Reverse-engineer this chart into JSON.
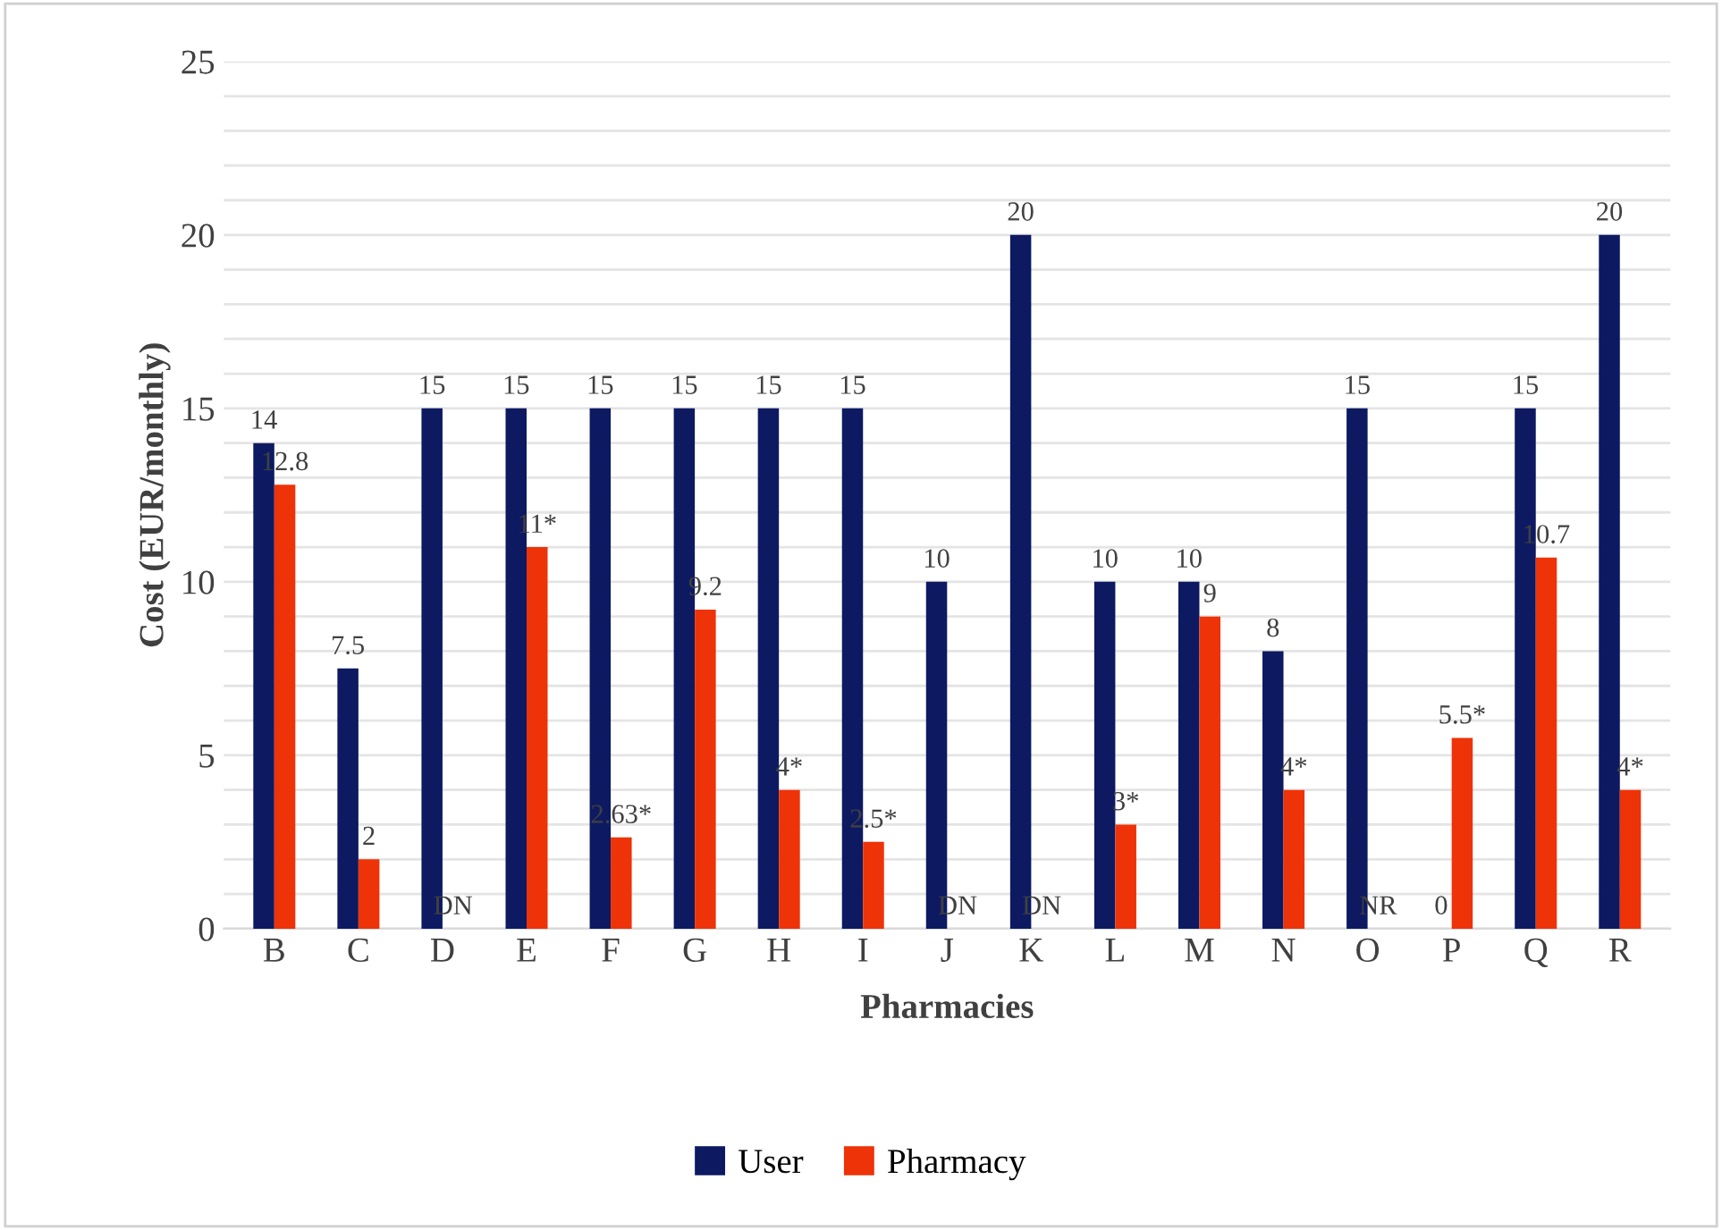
{
  "chart_data": {
    "type": "bar",
    "xlabel": "Pharmacies",
    "ylabel": "Cost (EUR/monthly)",
    "categories": [
      "B",
      "C",
      "D",
      "E",
      "F",
      "G",
      "H",
      "I",
      "J",
      "K",
      "L",
      "M",
      "N",
      "O",
      "P",
      "Q",
      "R"
    ],
    "series": [
      {
        "name": "User",
        "color": "#0d1a62",
        "values": [
          14,
          7.5,
          15,
          15,
          15,
          15,
          15,
          15,
          10,
          20,
          10,
          10,
          8,
          15,
          0,
          15,
          20
        ],
        "value_labels": [
          "14",
          "7.5",
          "15",
          "15",
          "15",
          "15",
          "15",
          "15",
          "10",
          "20",
          "10",
          "10",
          "8",
          "15",
          "0",
          "15",
          "20"
        ]
      },
      {
        "name": "Pharmacy",
        "color": "#ee3308",
        "values": [
          12.8,
          2,
          null,
          11,
          2.63,
          9.2,
          4,
          2.5,
          null,
          null,
          3,
          9,
          4,
          null,
          5.5,
          10.7,
          4
        ],
        "value_labels": [
          "12.8",
          "2",
          "DN",
          "11*",
          "2.63*",
          "9.2",
          "4*",
          "2.5*",
          "DN",
          "DN",
          "3*",
          "9",
          "4*",
          "NR",
          "5.5*",
          "10.7",
          "4*"
        ]
      }
    ],
    "ylim": [
      0,
      25
    ],
    "yticks": [
      0,
      {
        "value": 1,
        "label": null
      },
      {
        "value": 2,
        "label": null
      },
      {
        "value": 3,
        "label": null
      },
      {
        "value": 4,
        "label": null
      },
      5,
      {
        "value": 6,
        "label": null
      },
      {
        "value": 7,
        "label": null
      },
      {
        "value": 8,
        "label": null
      },
      {
        "value": 9,
        "label": null
      },
      10,
      {
        "value": 11,
        "label": null
      },
      {
        "value": 12,
        "label": null
      },
      {
        "value": 13,
        "label": null
      },
      {
        "value": 14,
        "label": null
      },
      15,
      {
        "value": 16,
        "label": null
      },
      {
        "value": 17,
        "label": null
      },
      {
        "value": 18,
        "label": null
      },
      {
        "value": 19,
        "label": null
      },
      20,
      {
        "value": 21,
        "label": null
      },
      {
        "value": 22,
        "label": null
      },
      {
        "value": 23,
        "label": null
      },
      {
        "value": 24,
        "label": null
      },
      25
    ],
    "grid": "y",
    "legend": "bottom"
  }
}
